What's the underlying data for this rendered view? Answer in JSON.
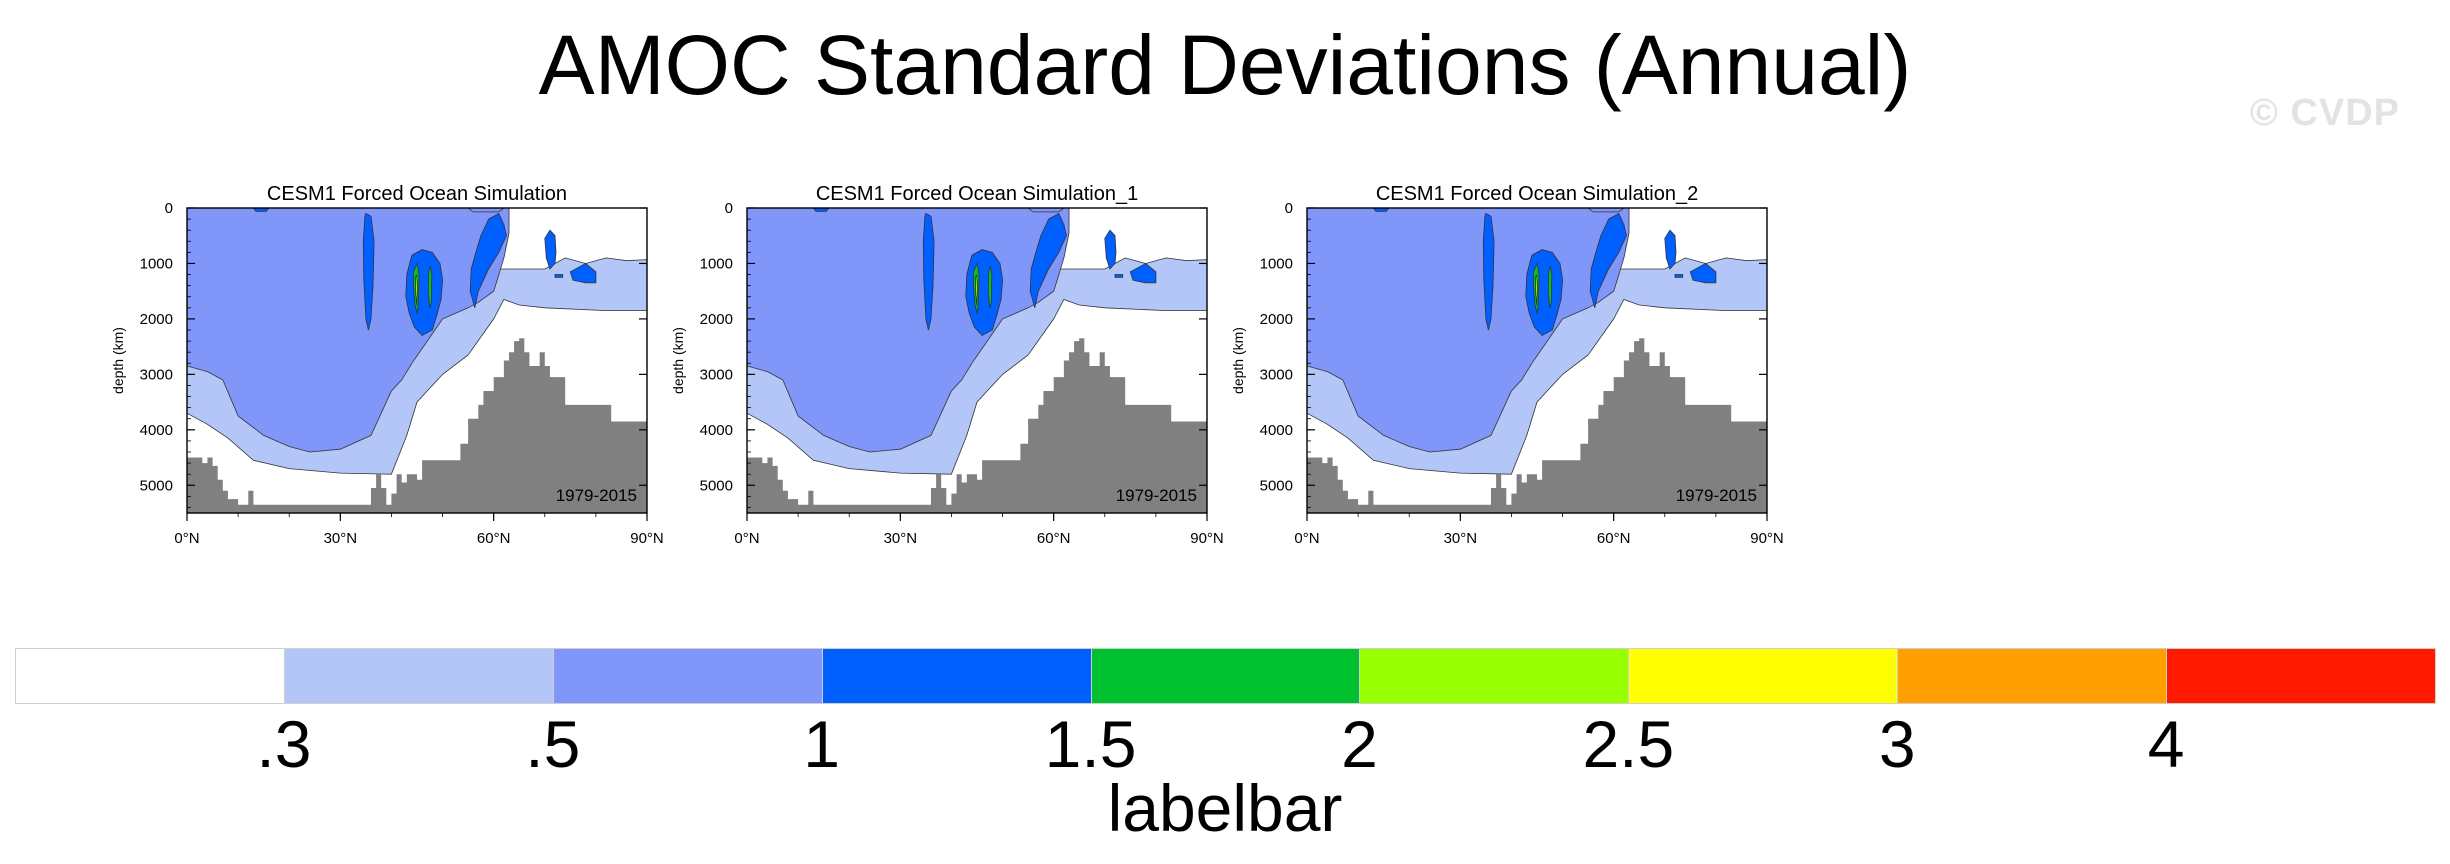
{
  "title": "AMOC Standard Deviations (Annual)",
  "watermark": "© CVDP",
  "period_label": "1979-2015",
  "ylabel": "depth (km)",
  "labelbar": {
    "title": "labelbar",
    "levels": [
      ".3",
      ".5",
      "1",
      "1.5",
      "2",
      "2.5",
      "3",
      "4"
    ],
    "colors": [
      "#ffffff",
      "#b4c6f8",
      "#8096f9",
      "#0060ff",
      "#00c230",
      "#98ff00",
      "#ffff00",
      "#ffa000",
      "#ff1a00"
    ]
  },
  "chart_data": [
    {
      "type": "heatmap",
      "title": "CESM1 Forced Ocean Simulation",
      "xlabel": "",
      "ylabel": "depth (km)",
      "xlim": [
        0,
        90
      ],
      "ylim": [
        5500,
        0
      ],
      "x_ticks": [
        "0°N",
        "30°N",
        "60°N",
        "90°N"
      ],
      "y_ticks": [
        "0",
        "1000",
        "2000",
        "3000",
        "4000",
        "5000"
      ],
      "annotation": "1979-2015",
      "max_value_range": "2-2.5"
    },
    {
      "type": "heatmap",
      "title": "CESM1 Forced Ocean Simulation_1",
      "xlabel": "",
      "ylabel": "depth (km)",
      "xlim": [
        0,
        90
      ],
      "ylim": [
        5500,
        0
      ],
      "x_ticks": [
        "0°N",
        "30°N",
        "60°N",
        "90°N"
      ],
      "y_ticks": [
        "0",
        "1000",
        "2000",
        "3000",
        "4000",
        "5000"
      ],
      "annotation": "1979-2015",
      "max_value_range": "2-2.5"
    },
    {
      "type": "heatmap",
      "title": "CESM1 Forced Ocean Simulation_2",
      "xlabel": "",
      "ylabel": "depth (km)",
      "xlim": [
        0,
        90
      ],
      "ylim": [
        5500,
        0
      ],
      "x_ticks": [
        "0°N",
        "30°N",
        "60°N",
        "90°N"
      ],
      "y_ticks": [
        "0",
        "1000",
        "2000",
        "3000",
        "4000",
        "5000"
      ],
      "annotation": "1979-2015",
      "max_value_range": "2-2.5"
    }
  ]
}
